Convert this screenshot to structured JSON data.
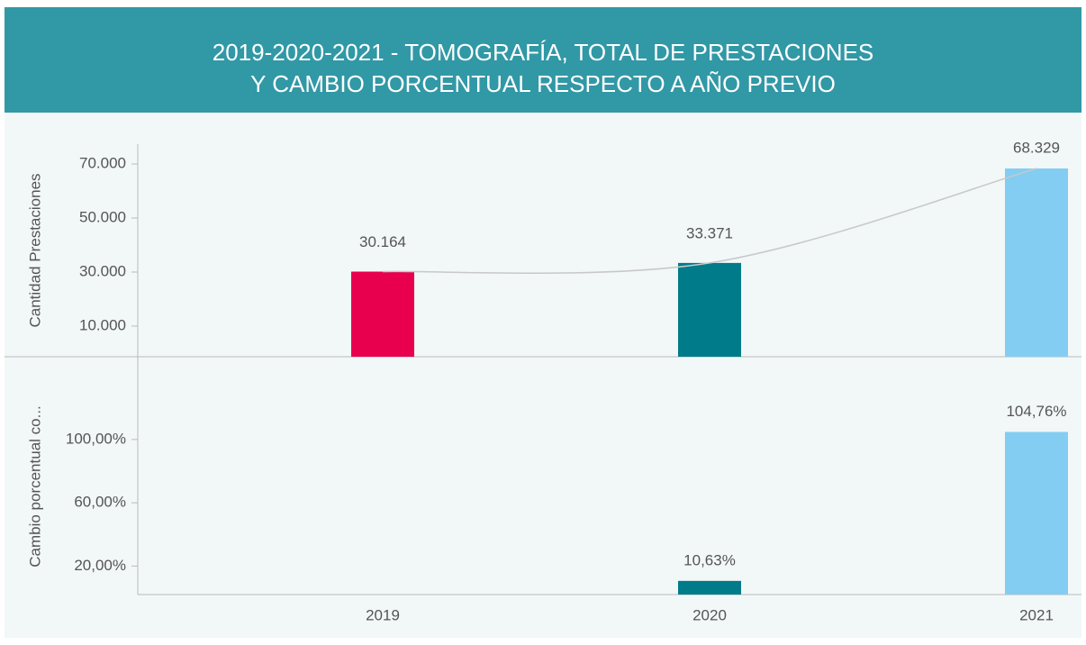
{
  "chart_data": {
    "type": "bar",
    "title": [
      "2019-2020-2021 - TOMOGRAFÍA, TOTAL DE PRESTACIONES",
      "Y CAMBIO PORCENTUAL RESPECTO A AÑO PREVIO"
    ],
    "categories": [
      "2019",
      "2020",
      "2021"
    ],
    "colors": [
      "#e8004f",
      "#007b8a",
      "#84cdf2"
    ],
    "series": [
      {
        "name": "Cantidad Prestaciones",
        "axis": "y",
        "values": [
          30164,
          33371,
          68329
        ],
        "value_labels": [
          "30.164",
          "33.371",
          "68.329"
        ]
      },
      {
        "name": "Cambio porcentual co...",
        "axis": "y2",
        "values": [
          null,
          10.63,
          104.76
        ],
        "value_labels": [
          null,
          "10,63%",
          "104,76%"
        ]
      }
    ],
    "ylim": [
      0,
      77000
    ],
    "yticks": [
      {
        "value": 10000,
        "label": "10.000"
      },
      {
        "value": 30000,
        "label": "30.000"
      },
      {
        "value": 50000,
        "label": "50.000"
      },
      {
        "value": 70000,
        "label": "70.000"
      }
    ],
    "y2lim": [
      2,
      150
    ],
    "y2ticks": [
      {
        "value": 20,
        "label": "20,00%"
      },
      {
        "value": 60,
        "label": "60,00%"
      },
      {
        "value": 100,
        "label": "100,00%"
      }
    ],
    "trend_line": true
  }
}
